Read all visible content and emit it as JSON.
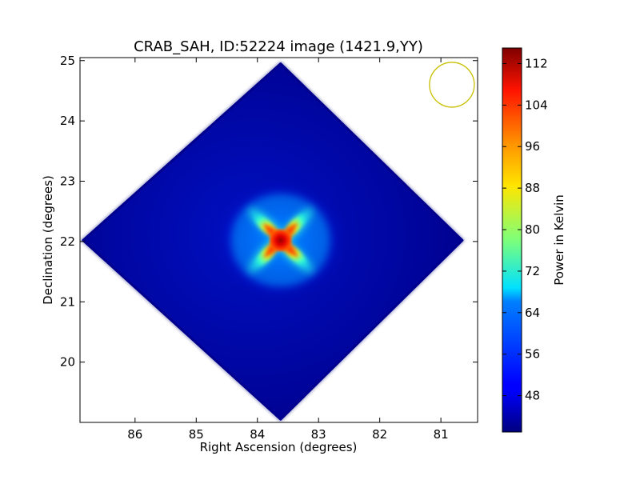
{
  "chart_data": {
    "type": "heatmap",
    "title": "CRAB_SAH, ID:52224 image (1421.9,YY)",
    "xlabel": "Right Ascension (degrees)",
    "ylabel": "Declination (degrees)",
    "colorbar_label": "Power in Kelvin",
    "xlim": [
      86.9,
      80.4
    ],
    "ylim": [
      19.0,
      25.05
    ],
    "x_ticks": [
      86,
      85,
      84,
      83,
      82,
      81
    ],
    "y_ticks": [
      20,
      21,
      22,
      23,
      24,
      25
    ],
    "colorbar_range": [
      41,
      115
    ],
    "colorbar_ticks": [
      48,
      56,
      64,
      72,
      80,
      88,
      96,
      104,
      112
    ],
    "colormap": "jet",
    "grid": false,
    "field": {
      "shape": "diamond",
      "center": {
        "ra": 83.62,
        "dec": 22.02
      },
      "vertices": [
        {
          "ra": 83.62,
          "dec": 24.95
        },
        {
          "ra": 80.65,
          "dec": 22.02
        },
        {
          "ra": 83.62,
          "dec": 19.05
        },
        {
          "ra": 86.85,
          "dec": 22.02
        }
      ],
      "background_level": 42
    },
    "source": {
      "name": "",
      "ra": 83.62,
      "dec": 22.02,
      "peak": 112,
      "pattern": "four-arm pinwheel"
    },
    "beam": {
      "ra": 80.82,
      "dec": 24.6,
      "color": "#c8c000"
    }
  }
}
